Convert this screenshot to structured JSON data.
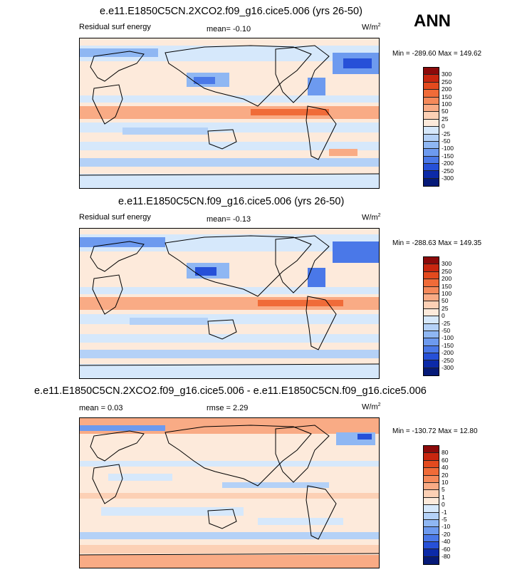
{
  "season": "ANN",
  "panels": [
    {
      "title": "e.e11.E1850C5CN.2XCO2.f09_g16.cice5.006 (yrs 26-50)",
      "left_label": "Residual surf energy",
      "center_label": "mean=  -0.10",
      "units": "W/m",
      "units_exp": "2",
      "minmax": "Min = -289.60 Max = 149.62"
    },
    {
      "title": "e.e11.E1850C5CN.f09_g16.cice5.006 (yrs 26-50)",
      "left_label": "Residual surf energy",
      "center_label": "mean=  -0.13",
      "units": "W/m",
      "units_exp": "2",
      "minmax": "Min = -288.63 Max = 149.35"
    },
    {
      "title": "e.e11.E1850C5CN.2XCO2.f09_g16.cice5.006 - e.e11.E1850C5CN.f09_g16.cice5.006",
      "left_label": "mean =   0.03",
      "center_label": "rmse =   2.29",
      "units": "W/m",
      "units_exp": "2",
      "minmax": "Min = -130.72 Max =  12.80"
    }
  ],
  "colorbar_full": {
    "levels": [
      "300",
      "250",
      "200",
      "150",
      "100",
      "50",
      "25",
      "0",
      "-25",
      "-50",
      "-100",
      "-150",
      "-200",
      "-250",
      "-300"
    ],
    "colors": [
      "#8c0a0a",
      "#c8260f",
      "#e34a1e",
      "#f06b38",
      "#f5895a",
      "#f9ab85",
      "#fcd0b5",
      "#fdeadb",
      "#d6e8fb",
      "#b4d1f7",
      "#8fb7f3",
      "#6d9aef",
      "#4a78e8",
      "#2650d8",
      "#0c2aa8",
      "#061a78"
    ]
  },
  "colorbar_diff": {
    "levels": [
      "80",
      "60",
      "40",
      "20",
      "10",
      "5",
      "1",
      "0",
      "-1",
      "-5",
      "-10",
      "-20",
      "-40",
      "-60",
      "-80"
    ],
    "colors": [
      "#8c0a0a",
      "#c8260f",
      "#e34a1e",
      "#f06b38",
      "#f5895a",
      "#f9ab85",
      "#fcd0b5",
      "#fdeadb",
      "#d6e8fb",
      "#b4d1f7",
      "#8fb7f3",
      "#6d9aef",
      "#4a78e8",
      "#2650d8",
      "#0c2aa8",
      "#061a78"
    ]
  },
  "chart_data": [
    {
      "type": "heatmap",
      "title": "e.e11.E1850C5CN.2XCO2.f09_g16.cice5.006 (yrs 26-50)",
      "variable": "Residual surf energy",
      "units": "W/m2",
      "mean": -0.1,
      "min": -289.6,
      "max": 149.62,
      "contour_levels": [
        -300,
        -250,
        -200,
        -150,
        -100,
        -50,
        -25,
        0,
        25,
        50,
        100,
        150,
        200,
        250,
        300
      ],
      "domain": "global lon/lat map"
    },
    {
      "type": "heatmap",
      "title": "e.e11.E1850C5CN.f09_g16.cice5.006 (yrs 26-50)",
      "variable": "Residual surf energy",
      "units": "W/m2",
      "mean": -0.13,
      "min": -288.63,
      "max": 149.35,
      "contour_levels": [
        -300,
        -250,
        -200,
        -150,
        -100,
        -50,
        -25,
        0,
        25,
        50,
        100,
        150,
        200,
        250,
        300
      ],
      "domain": "global lon/lat map"
    },
    {
      "type": "heatmap",
      "title": "e.e11.E1850C5CN.2XCO2.f09_g16.cice5.006 - e.e11.E1850C5CN.f09_g16.cice5.006",
      "units": "W/m2",
      "mean": 0.03,
      "rmse": 2.29,
      "min": -130.72,
      "max": 12.8,
      "contour_levels": [
        -80,
        -60,
        -40,
        -20,
        -10,
        -5,
        -1,
        0,
        1,
        5,
        10,
        20,
        40,
        60,
        80
      ],
      "domain": "global lon/lat map"
    }
  ]
}
